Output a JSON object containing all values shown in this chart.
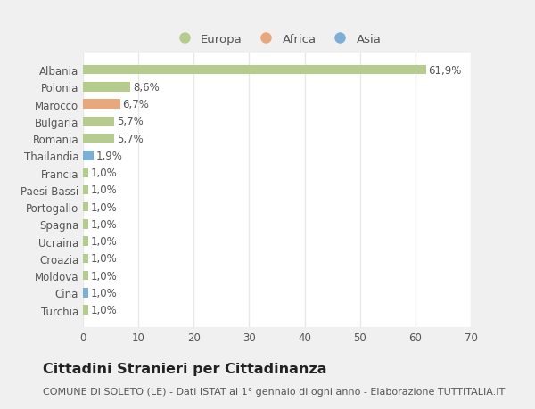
{
  "categories": [
    "Albania",
    "Polonia",
    "Marocco",
    "Bulgaria",
    "Romania",
    "Thailandia",
    "Francia",
    "Paesi Bassi",
    "Portogallo",
    "Spagna",
    "Ucraina",
    "Croazia",
    "Moldova",
    "Cina",
    "Turchia"
  ],
  "values": [
    61.9,
    8.6,
    6.7,
    5.7,
    5.7,
    1.9,
    1.0,
    1.0,
    1.0,
    1.0,
    1.0,
    1.0,
    1.0,
    1.0,
    1.0
  ],
  "labels": [
    "61,9%",
    "8,6%",
    "6,7%",
    "5,7%",
    "5,7%",
    "1,9%",
    "1,0%",
    "1,0%",
    "1,0%",
    "1,0%",
    "1,0%",
    "1,0%",
    "1,0%",
    "1,0%",
    "1,0%"
  ],
  "colors": [
    "#b5cc8e",
    "#b5cc8e",
    "#e8a87c",
    "#b5cc8e",
    "#b5cc8e",
    "#7bafd4",
    "#b5cc8e",
    "#b5cc8e",
    "#b5cc8e",
    "#b5cc8e",
    "#b5cc8e",
    "#b5cc8e",
    "#b5cc8e",
    "#7bafd4",
    "#b5cc8e"
  ],
  "legend_labels": [
    "Europa",
    "Africa",
    "Asia"
  ],
  "legend_colors": [
    "#b5cc8e",
    "#e8a87c",
    "#7bafd4"
  ],
  "xlim": [
    0,
    70
  ],
  "xticks": [
    0,
    10,
    20,
    30,
    40,
    50,
    60,
    70
  ],
  "title": "Cittadini Stranieri per Cittadinanza",
  "subtitle": "COMUNE DI SOLETO (LE) - Dati ISTAT al 1° gennaio di ogni anno - Elaborazione TUTTITALIA.IT",
  "bg_color": "#f0f0f0",
  "plot_bg_color": "#ffffff",
  "grid_color": "#e8e8e8",
  "bar_height": 0.55,
  "label_fontsize": 8.5,
  "tick_fontsize": 8.5,
  "title_fontsize": 11.5,
  "subtitle_fontsize": 8,
  "text_color": "#555555",
  "title_color": "#222222"
}
